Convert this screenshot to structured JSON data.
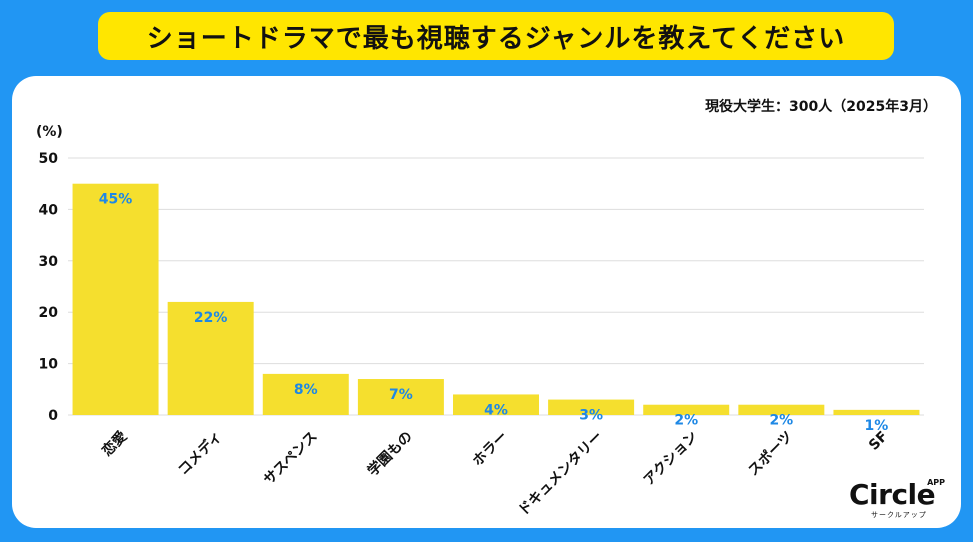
{
  "header": {
    "title": "ショートドラマで最も視聴するジャンルを教えてください"
  },
  "subtitle": "現役大学生：300人（2025年3月）",
  "logo": {
    "name": "Circle",
    "app": "APP",
    "sub": "サークルアップ"
  },
  "chart_data": {
    "type": "bar",
    "title": "ショートドラマで最も視聴するジャンルを教えてください",
    "ylabel": "(%)",
    "xlabel": "",
    "ylim": [
      0,
      50
    ],
    "yticks": [
      0,
      10,
      20,
      30,
      40,
      50
    ],
    "grid": true,
    "categories": [
      "恋愛",
      "コメディ",
      "サスペンス",
      "学園もの",
      "ホラー",
      "ドキュメンタリー",
      "アクション",
      "スポーツ",
      "SF"
    ],
    "values": [
      45,
      22,
      8,
      7,
      4,
      3,
      2,
      2,
      1
    ],
    "data_labels": [
      "45%",
      "22%",
      "8%",
      "7%",
      "4%",
      "3%",
      "2%",
      "2%",
      "1%"
    ],
    "colors": {
      "bar": "#f5df2e",
      "label": "#1e88e5",
      "grid": "#dddddd",
      "axis_text": "#111111"
    }
  }
}
